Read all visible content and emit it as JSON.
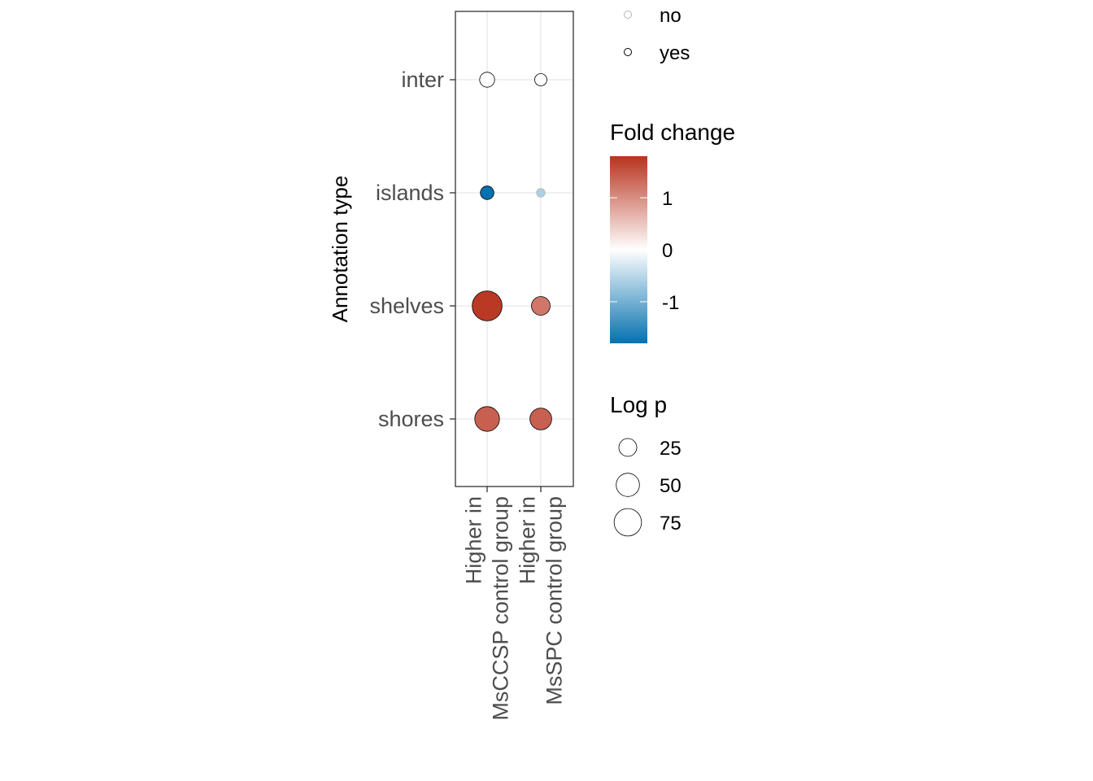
{
  "chart_data": {
    "type": "scatter",
    "title": "",
    "xlabel": "",
    "ylabel": "Annotation type",
    "x_categories": [
      [
        "Higher in",
        "MsCCSP control group"
      ],
      [
        "Higher in",
        "MsSPC control group"
      ]
    ],
    "y_categories": [
      "inter",
      "islands",
      "shelves",
      "shores"
    ],
    "points": [
      {
        "x": 0,
        "y": "inter",
        "fold_change": 0.0,
        "log_p": 15,
        "significant": "yes"
      },
      {
        "x": 1,
        "y": "inter",
        "fold_change": 0.0,
        "log_p": 8,
        "significant": "yes"
      },
      {
        "x": 0,
        "y": "islands",
        "fold_change": -1.8,
        "log_p": 11,
        "significant": "yes"
      },
      {
        "x": 1,
        "y": "islands",
        "fold_change": -0.6,
        "log_p": 2,
        "significant": "no"
      },
      {
        "x": 0,
        "y": "shelves",
        "fold_change": 1.75,
        "log_p": 92,
        "significant": "yes"
      },
      {
        "x": 1,
        "y": "shelves",
        "fold_change": 1.2,
        "log_p": 28,
        "significant": "yes"
      },
      {
        "x": 0,
        "y": "shores",
        "fold_change": 1.4,
        "log_p": 58,
        "significant": "yes"
      },
      {
        "x": 1,
        "y": "shores",
        "fold_change": 1.4,
        "log_p": 42,
        "significant": "yes"
      }
    ],
    "grid": true,
    "legends": {
      "significance": {
        "title": "",
        "entries": [
          {
            "label": "no",
            "stroke": "#b3b3b3"
          },
          {
            "label": "yes",
            "stroke": "#000000"
          }
        ]
      },
      "fold_change": {
        "title": "Fold change",
        "ticks": [
          1,
          0,
          -1
        ],
        "range": [
          -1.8,
          1.8
        ],
        "colors": {
          "low": "#0571b0",
          "mid": "#ffffff",
          "high": "#b8331f"
        }
      },
      "log_p": {
        "title": "Log p",
        "breaks": [
          25,
          50,
          75
        ],
        "range": [
          0,
          100
        ]
      }
    }
  }
}
